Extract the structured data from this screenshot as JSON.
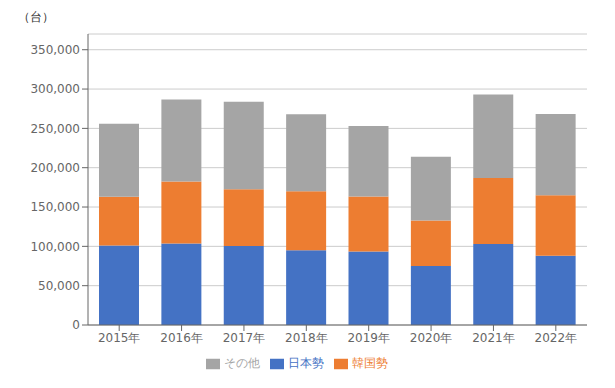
{
  "chart_data": {
    "type": "bar",
    "stacked": true,
    "ylabel": "（台）",
    "categories": [
      "2015年",
      "2016年",
      "2017年",
      "2018年",
      "2019年",
      "2020年",
      "2021年",
      "2022年"
    ],
    "series": [
      {
        "name": "日本勢",
        "color": "#4472c4",
        "values": [
          101000,
          103500,
          100500,
          95000,
          93500,
          75000,
          103000,
          87943
        ]
      },
      {
        "name": "韓国勢",
        "color": "#ed7d31",
        "values": [
          62000,
          79000,
          72000,
          75000,
          70000,
          58000,
          84000,
          77000
        ]
      },
      {
        "name": "その他",
        "color": "#a5a5a5",
        "values": [
          93000,
          104228,
          111500,
          98000,
          89500,
          81000,
          106000,
          103202
        ]
      }
    ],
    "ylim": [
      0,
      370000
    ],
    "yticks": [
      0,
      {
        "value": 50000,
        "label": "50,000"
      },
      {
        "value": 100000,
        "label": "100,000"
      },
      {
        "value": 150000,
        "label": "150,000"
      },
      {
        "value": 200000,
        "label": "200,000"
      },
      {
        "value": 250000,
        "label": "250,000"
      },
      {
        "value": 300000,
        "label": "300,000"
      },
      {
        "value": 350000,
        "label": "350,000"
      }
    ],
    "grid": true,
    "legend": "bottom"
  }
}
